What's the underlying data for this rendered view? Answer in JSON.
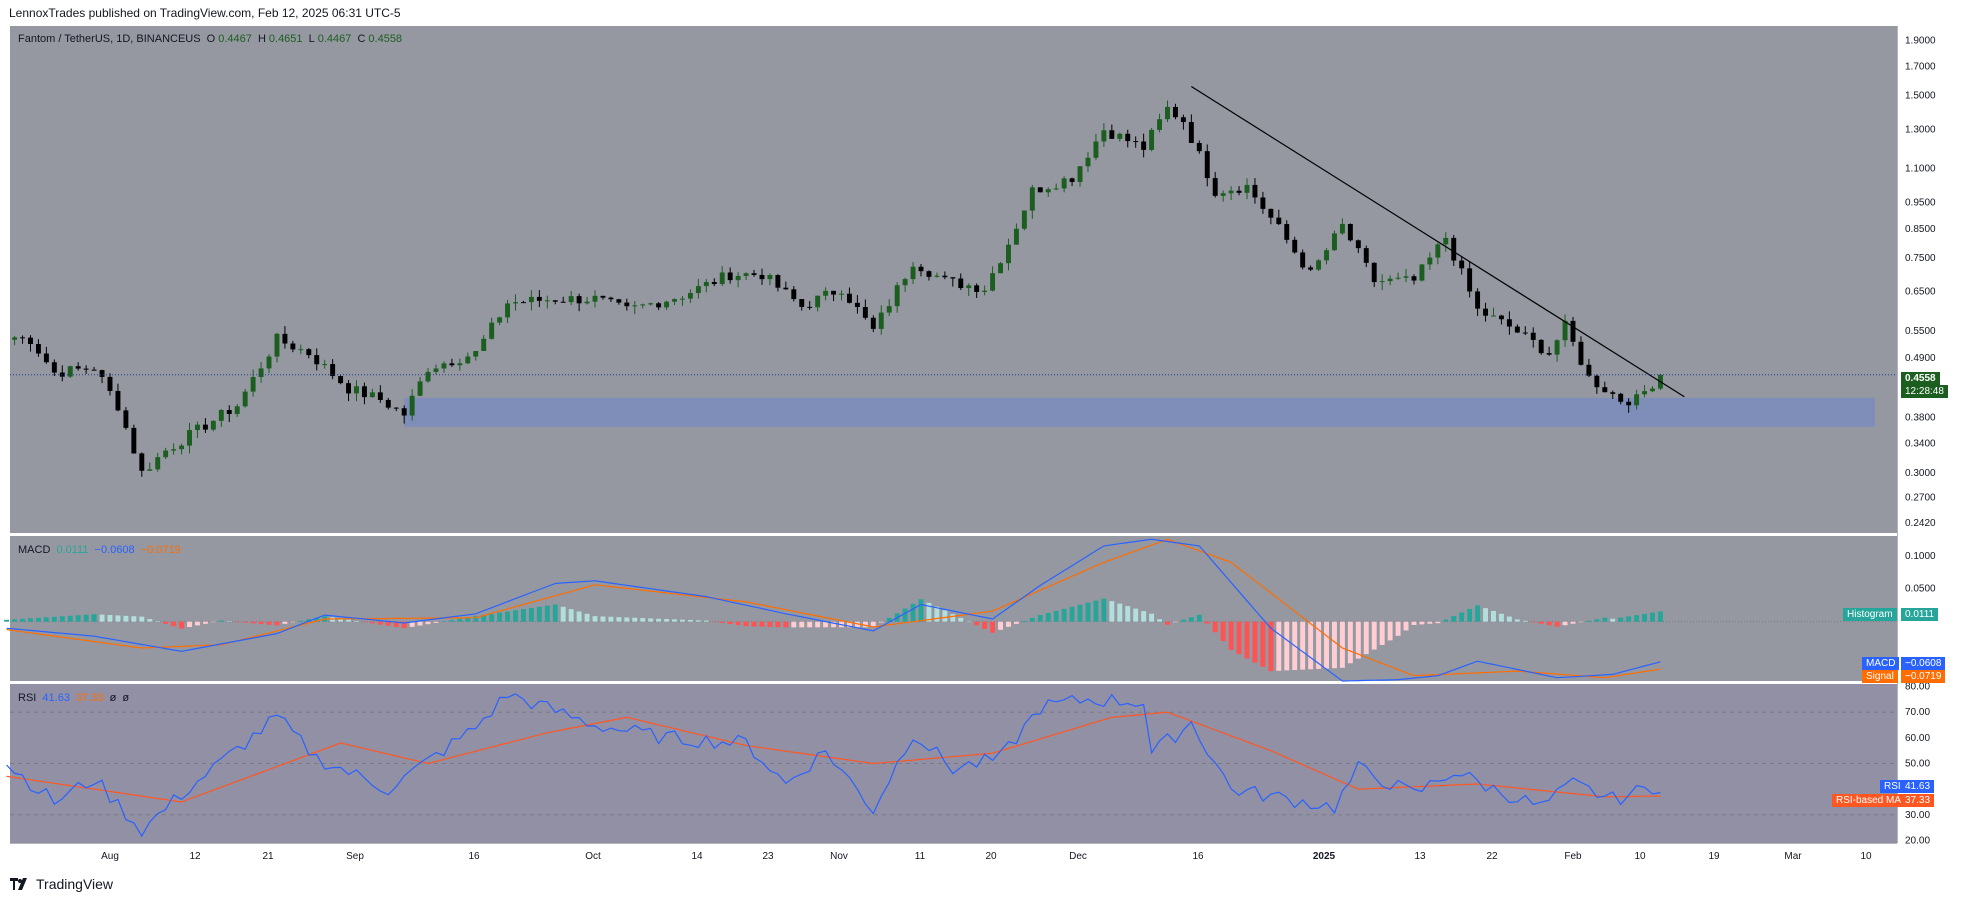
{
  "header": {
    "text": "LennoxTrades published on TradingView.com, Feb 12, 2025 06:31 UTC-5"
  },
  "footer": {
    "brand": "TradingView"
  },
  "legend": {
    "symbol": "Fantom / TetherUS, 1D, BINANCEUS",
    "o_label": "O",
    "o_value": "0.4467",
    "h_label": "H",
    "h_value": "0.4651",
    "l_label": "L",
    "l_value": "0.4467",
    "c_label": "C",
    "c_value": "0.4558"
  },
  "macd_legend": {
    "name": "MACD",
    "hist": "0.0111",
    "macd": "−0.0608",
    "signal": "−0.0719"
  },
  "rsi_legend": {
    "name": "RSI",
    "rsi": "41.63",
    "ma": "37.33",
    "extra1": "ø",
    "extra2": "ø"
  },
  "price_tags": {
    "last": "0.4558",
    "countdown": "12:28:48"
  },
  "macd_tags": {
    "hist_label": "Histogram",
    "hist_value": "0.0111",
    "macd_label": "MACD",
    "macd_value": "−0.0608",
    "signal_label": "Signal",
    "signal_value": "−0.0719"
  },
  "rsi_tags": {
    "rsi_label": "RSI",
    "rsi_value": "41.63",
    "ma_label": "RSI-based MA",
    "ma_value": "37.33"
  },
  "colors": {
    "up": "#1b5e20",
    "down": "#000000",
    "bg": "#9598a1",
    "zone": "#7b8bbd",
    "macd": "#2962ff",
    "signal": "#ff6d00",
    "rsi": "#2962ff",
    "rsi_ma": "#ff5722",
    "hist_pos": "#26a69a",
    "hist_pos_light": "#b2dfdb",
    "hist_neg": "#ff5252",
    "hist_neg_light": "#ffcdd2"
  },
  "chart_data": [
    {
      "type": "candlestick",
      "title": "Fantom / TetherUS, 1D, BINANCEUS",
      "x_ticks": [
        "Aug",
        "12",
        "21",
        "Sep",
        "16",
        "Oct",
        "14",
        "23",
        "Nov",
        "11",
        "20",
        "Dec",
        "16",
        "2025",
        "13",
        "22",
        "Feb",
        "10",
        "19",
        "Mar",
        "10"
      ],
      "y_ticks": [
        "1.9000",
        "1.7000",
        "1.5000",
        "1.3000",
        "1.1000",
        "0.9500",
        "0.8500",
        "0.7500",
        "0.6500",
        "0.5500",
        "0.4900",
        "0.3800",
        "0.3400",
        "0.3000",
        "0.2700",
        "0.2420"
      ],
      "scale": "log",
      "ylim": [
        0.232,
        2.02
      ],
      "support_zone": [
        0.365,
        0.413
      ],
      "trendline": [
        {
          "x": "2024-12-15",
          "y": 1.56
        },
        {
          "x": "2025-02-15",
          "y": 0.415
        }
      ],
      "last_price": 0.4558,
      "anchors": [
        {
          "date": "2024-07-20",
          "close": 0.535
        },
        {
          "date": "2024-07-22",
          "close": 0.53
        },
        {
          "date": "2024-07-25",
          "close": 0.46
        },
        {
          "date": "2024-07-30",
          "close": 0.47
        },
        {
          "date": "2024-08-02",
          "close": 0.4
        },
        {
          "date": "2024-08-05",
          "close": 0.3
        },
        {
          "date": "2024-08-08",
          "close": 0.33
        },
        {
          "date": "2024-08-12",
          "close": 0.36
        },
        {
          "date": "2024-08-17",
          "close": 0.4
        },
        {
          "date": "2024-08-22",
          "close": 0.53
        },
        {
          "date": "2024-08-26",
          "close": 0.5
        },
        {
          "date": "2024-08-31",
          "close": 0.43
        },
        {
          "date": "2024-09-04",
          "close": 0.41
        },
        {
          "date": "2024-09-07",
          "close": 0.385
        },
        {
          "date": "2024-09-10",
          "close": 0.47
        },
        {
          "date": "2024-09-16",
          "close": 0.5
        },
        {
          "date": "2024-09-20",
          "close": 0.62
        },
        {
          "date": "2024-09-26",
          "close": 0.63
        },
        {
          "date": "2024-10-01",
          "close": 0.63
        },
        {
          "date": "2024-10-05",
          "close": 0.6
        },
        {
          "date": "2024-10-12",
          "close": 0.64
        },
        {
          "date": "2024-10-18",
          "close": 0.7
        },
        {
          "date": "2024-10-22",
          "close": 0.7
        },
        {
          "date": "2024-10-27",
          "close": 0.61
        },
        {
          "date": "2024-11-01",
          "close": 0.66
        },
        {
          "date": "2024-11-05",
          "close": 0.55
        },
        {
          "date": "2024-11-10",
          "close": 0.74
        },
        {
          "date": "2024-11-14",
          "close": 0.68
        },
        {
          "date": "2024-11-19",
          "close": 0.66
        },
        {
          "date": "2024-11-22",
          "close": 0.8
        },
        {
          "date": "2024-11-25",
          "close": 1.0
        },
        {
          "date": "2024-11-30",
          "close": 1.06
        },
        {
          "date": "2024-12-04",
          "close": 1.3
        },
        {
          "date": "2024-12-09",
          "close": 1.2
        },
        {
          "date": "2024-12-12",
          "close": 1.42
        },
        {
          "date": "2024-12-14",
          "close": 1.35
        },
        {
          "date": "2024-12-18",
          "close": 1.0
        },
        {
          "date": "2024-12-22",
          "close": 1.02
        },
        {
          "date": "2024-12-26",
          "close": 0.85
        },
        {
          "date": "2024-12-30",
          "close": 0.7
        },
        {
          "date": "2025-01-03",
          "close": 0.86
        },
        {
          "date": "2025-01-07",
          "close": 0.68
        },
        {
          "date": "2025-01-12",
          "close": 0.68
        },
        {
          "date": "2025-01-16",
          "close": 0.82
        },
        {
          "date": "2025-01-20",
          "close": 0.6
        },
        {
          "date": "2025-01-24",
          "close": 0.56
        },
        {
          "date": "2025-01-29",
          "close": 0.5
        },
        {
          "date": "2025-01-31",
          "close": 0.56
        },
        {
          "date": "2025-02-03",
          "close": 0.45
        },
        {
          "date": "2025-02-07",
          "close": 0.41
        },
        {
          "date": "2025-02-09",
          "close": 0.41
        },
        {
          "date": "2025-02-12",
          "close": 0.4558
        }
      ]
    },
    {
      "type": "line",
      "title": "MACD",
      "y_ticks": [
        "0.1000",
        "0.0500"
      ],
      "ylim": [
        -0.09,
        0.13
      ],
      "macd": [
        {
          "date": "2024-07-19",
          "value": -0.01
        },
        {
          "date": "2024-07-30",
          "value": -0.022
        },
        {
          "date": "2024-08-10",
          "value": -0.045
        },
        {
          "date": "2024-08-22",
          "value": -0.018
        },
        {
          "date": "2024-08-28",
          "value": 0.01
        },
        {
          "date": "2024-09-07",
          "value": -0.002
        },
        {
          "date": "2024-09-16",
          "value": 0.012
        },
        {
          "date": "2024-09-26",
          "value": 0.058
        },
        {
          "date": "2024-10-01",
          "value": 0.062
        },
        {
          "date": "2024-10-15",
          "value": 0.038
        },
        {
          "date": "2024-10-25",
          "value": 0.012
        },
        {
          "date": "2024-11-05",
          "value": -0.014
        },
        {
          "date": "2024-11-11",
          "value": 0.026
        },
        {
          "date": "2024-11-20",
          "value": 0.004
        },
        {
          "date": "2024-11-26",
          "value": 0.055
        },
        {
          "date": "2024-12-04",
          "value": 0.115
        },
        {
          "date": "2024-12-10",
          "value": 0.125
        },
        {
          "date": "2024-12-16",
          "value": 0.115
        },
        {
          "date": "2024-12-25",
          "value": -0.01
        },
        {
          "date": "2025-01-03",
          "value": -0.09
        },
        {
          "date": "2025-01-10",
          "value": -0.088
        },
        {
          "date": "2025-01-15",
          "value": -0.082
        },
        {
          "date": "2025-01-20",
          "value": -0.06
        },
        {
          "date": "2025-01-30",
          "value": -0.085
        },
        {
          "date": "2025-02-06",
          "value": -0.08
        },
        {
          "date": "2025-02-12",
          "value": -0.0608
        }
      ],
      "signal": [
        {
          "date": "2024-07-19",
          "value": -0.012
        },
        {
          "date": "2024-08-05",
          "value": -0.04
        },
        {
          "date": "2024-08-15",
          "value": -0.035
        },
        {
          "date": "2024-08-28",
          "value": 0.004
        },
        {
          "date": "2024-09-16",
          "value": 0.006
        },
        {
          "date": "2024-10-01",
          "value": 0.056
        },
        {
          "date": "2024-10-20",
          "value": 0.03
        },
        {
          "date": "2024-11-05",
          "value": -0.008
        },
        {
          "date": "2024-11-20",
          "value": 0.016
        },
        {
          "date": "2024-12-04",
          "value": 0.09
        },
        {
          "date": "2024-12-12",
          "value": 0.125
        },
        {
          "date": "2024-12-20",
          "value": 0.09
        },
        {
          "date": "2025-01-03",
          "value": -0.04
        },
        {
          "date": "2025-01-12",
          "value": -0.082
        },
        {
          "date": "2025-01-25",
          "value": -0.075
        },
        {
          "date": "2025-02-05",
          "value": -0.085
        },
        {
          "date": "2025-02-12",
          "value": -0.0719
        }
      ]
    },
    {
      "type": "line",
      "title": "RSI",
      "y_ticks": [
        "80.00",
        "70.00",
        "60.00",
        "50.00",
        "40.00",
        "30.00",
        "20.00"
      ],
      "ylim": [
        19,
        81
      ],
      "bands": [
        70,
        50,
        30
      ],
      "rsi": [
        {
          "date": "2024-07-19",
          "value": 50
        },
        {
          "date": "2024-07-25",
          "value": 35
        },
        {
          "date": "2024-07-30",
          "value": 44
        },
        {
          "date": "2024-08-05",
          "value": 24
        },
        {
          "date": "2024-08-10",
          "value": 38
        },
        {
          "date": "2024-08-22",
          "value": 68
        },
        {
          "date": "2024-08-27",
          "value": 52
        },
        {
          "date": "2024-09-05",
          "value": 40
        },
        {
          "date": "2024-09-16",
          "value": 64
        },
        {
          "date": "2024-09-20",
          "value": 77
        },
        {
          "date": "2024-10-01",
          "value": 65
        },
        {
          "date": "2024-10-10",
          "value": 60
        },
        {
          "date": "2024-10-20",
          "value": 58
        },
        {
          "date": "2024-10-25",
          "value": 42
        },
        {
          "date": "2024-10-30",
          "value": 55
        },
        {
          "date": "2024-11-05",
          "value": 32
        },
        {
          "date": "2024-11-10",
          "value": 62
        },
        {
          "date": "2024-11-15",
          "value": 48
        },
        {
          "date": "2024-11-21",
          "value": 52
        },
        {
          "date": "2024-11-26",
          "value": 72
        },
        {
          "date": "2024-12-02",
          "value": 75
        },
        {
          "date": "2024-12-09",
          "value": 74
        },
        {
          "date": "2024-12-10",
          "value": 54
        },
        {
          "date": "2024-12-15",
          "value": 66
        },
        {
          "date": "2024-12-20",
          "value": 40
        },
        {
          "date": "2025-01-02",
          "value": 33
        },
        {
          "date": "2025-01-05",
          "value": 48
        },
        {
          "date": "2025-01-12",
          "value": 38
        },
        {
          "date": "2025-01-17",
          "value": 47
        },
        {
          "date": "2025-01-22",
          "value": 40
        },
        {
          "date": "2025-01-28",
          "value": 33
        },
        {
          "date": "2025-02-01",
          "value": 42
        },
        {
          "date": "2025-02-06",
          "value": 36
        },
        {
          "date": "2025-02-12",
          "value": 41.63
        }
      ],
      "rsi_ma": [
        {
          "date": "2024-07-19",
          "value": 45
        },
        {
          "date": "2024-08-10",
          "value": 35
        },
        {
          "date": "2024-08-30",
          "value": 58
        },
        {
          "date": "2024-09-10",
          "value": 50
        },
        {
          "date": "2024-09-25",
          "value": 62
        },
        {
          "date": "2024-10-05",
          "value": 68
        },
        {
          "date": "2024-10-20",
          "value": 57
        },
        {
          "date": "2024-11-05",
          "value": 50
        },
        {
          "date": "2024-11-20",
          "value": 54
        },
        {
          "date": "2024-12-05",
          "value": 68
        },
        {
          "date": "2024-12-12",
          "value": 70
        },
        {
          "date": "2024-12-25",
          "value": 55
        },
        {
          "date": "2025-01-05",
          "value": 40
        },
        {
          "date": "2025-01-20",
          "value": 42
        },
        {
          "date": "2025-02-05",
          "value": 37
        },
        {
          "date": "2025-02-12",
          "value": 37.33
        }
      ]
    }
  ]
}
